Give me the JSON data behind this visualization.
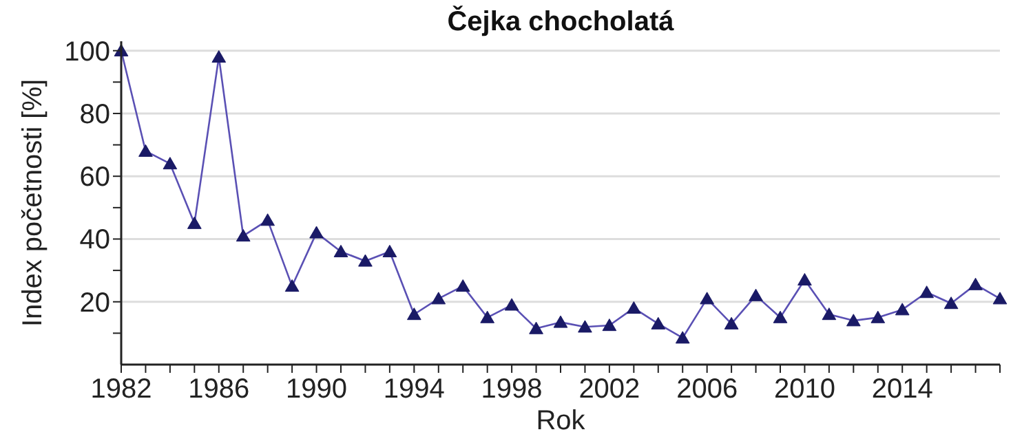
{
  "chart_data": {
    "type": "line",
    "title": "Čejka chocholatá",
    "xlabel": "Rok",
    "ylabel": "Index početnosti [%]",
    "x": [
      1982,
      1983,
      1984,
      1985,
      1986,
      1987,
      1988,
      1989,
      1990,
      1991,
      1992,
      1993,
      1994,
      1995,
      1996,
      1997,
      1998,
      1999,
      2000,
      2001,
      2002,
      2003,
      2004,
      2005,
      2006,
      2007,
      2008,
      2009,
      2010,
      2011,
      2012,
      2013,
      2014,
      2015,
      2016,
      2017,
      2018
    ],
    "series": [
      {
        "color": "#5a50b4",
        "values": [
          100,
          68,
          64,
          45,
          98,
          41,
          46,
          25,
          42,
          36,
          33,
          36,
          16,
          21,
          25,
          15,
          19,
          11.5,
          13.5,
          12,
          12.5,
          18,
          13,
          8.5,
          21,
          13,
          22,
          15,
          27,
          16,
          14,
          15,
          17.5,
          23,
          19.5,
          25.5,
          21
        ]
      }
    ],
    "xlim": [
      1982,
      2018
    ],
    "xticks": [
      1982,
      {
        "value": 1983,
        "label": null
      },
      {
        "value": 1984,
        "label": null
      },
      {
        "value": 1985,
        "label": null
      },
      1986,
      {
        "value": 1987,
        "label": null
      },
      {
        "value": 1988,
        "label": null
      },
      {
        "value": 1989,
        "label": null
      },
      1990,
      {
        "value": 1991,
        "label": null
      },
      {
        "value": 1992,
        "label": null
      },
      {
        "value": 1993,
        "label": null
      },
      1994,
      {
        "value": 1995,
        "label": null
      },
      {
        "value": 1996,
        "label": null
      },
      {
        "value": 1997,
        "label": null
      },
      1998,
      {
        "value": 1999,
        "label": null
      },
      {
        "value": 2000,
        "label": null
      },
      {
        "value": 2001,
        "label": null
      },
      2002,
      {
        "value": 2003,
        "label": null
      },
      {
        "value": 2004,
        "label": null
      },
      {
        "value": 2005,
        "label": null
      },
      2006,
      {
        "value": 2007,
        "label": null
      },
      {
        "value": 2008,
        "label": null
      },
      {
        "value": 2009,
        "label": null
      },
      2010,
      {
        "value": 2011,
        "label": null
      },
      {
        "value": 2012,
        "label": null
      },
      {
        "value": 2013,
        "label": null
      },
      2014,
      {
        "value": 2015,
        "label": null
      },
      {
        "value": 2016,
        "label": null
      },
      {
        "value": 2017,
        "label": null
      },
      {
        "value": 2018,
        "label": null
      }
    ],
    "ylim": [
      0,
      103
    ],
    "yticks": [
      {
        "value": 10,
        "label": null
      },
      20,
      {
        "value": 30,
        "label": null
      },
      40,
      {
        "value": 50,
        "label": null
      },
      60,
      {
        "value": 70,
        "label": null
      },
      80,
      {
        "value": 90,
        "label": null
      },
      100
    ],
    "grid": "y",
    "marker": "triangle",
    "line_style": "solid"
  }
}
